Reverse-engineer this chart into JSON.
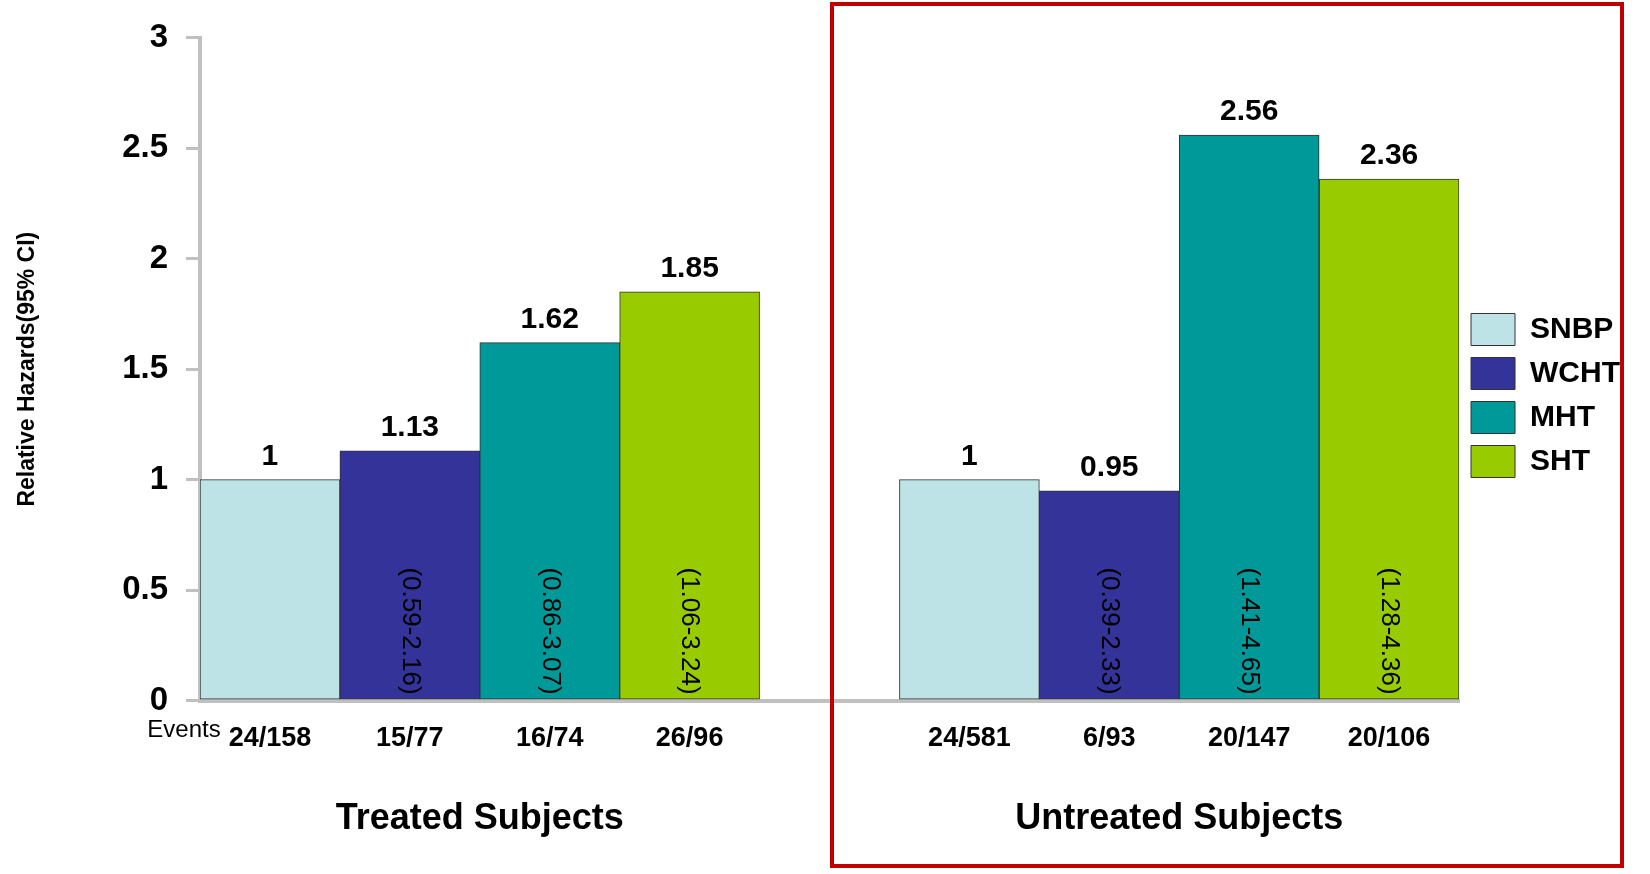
{
  "chart_data": {
    "type": "bar",
    "ylabel": "Relative Hazards(95% CI)",
    "categories": [
      "24/158",
      "15/77",
      "16/74",
      "26/96",
      null,
      "24/581",
      "6/93",
      "20/147",
      "20/106"
    ],
    "stacked": true,
    "series": [
      {
        "name": "SNBP",
        "color": "#bde3e6",
        "values": [
          1,
          null,
          null,
          null,
          null,
          1,
          null,
          null,
          null
        ]
      },
      {
        "name": "WCHT",
        "color": "#333399",
        "values": [
          null,
          1.13,
          null,
          null,
          null,
          null,
          0.95,
          null,
          null
        ]
      },
      {
        "name": "MHT",
        "color": "#009999",
        "values": [
          null,
          null,
          1.62,
          null,
          null,
          null,
          null,
          2.56,
          null
        ]
      },
      {
        "name": "SHT",
        "color": "#99cc00",
        "values": [
          null,
          null,
          null,
          1.85,
          null,
          null,
          null,
          null,
          2.36
        ]
      }
    ],
    "ylim": [
      0,
      3
    ],
    "yticks": [
      0,
      0.5,
      1,
      1.5,
      2,
      2.5,
      3
    ],
    "grid": false,
    "legend": "right",
    "data_labels": true,
    "annotations": [
      "Events",
      "Treated Subjects",
      "Untreated Subjects",
      "(0.59-2.16)",
      "(0.86-3.07)",
      "(1.06-3.24)",
      "(0.39-2.33)",
      "(1.41-4.65)",
      "(1.28-4.36)"
    ]
  }
}
